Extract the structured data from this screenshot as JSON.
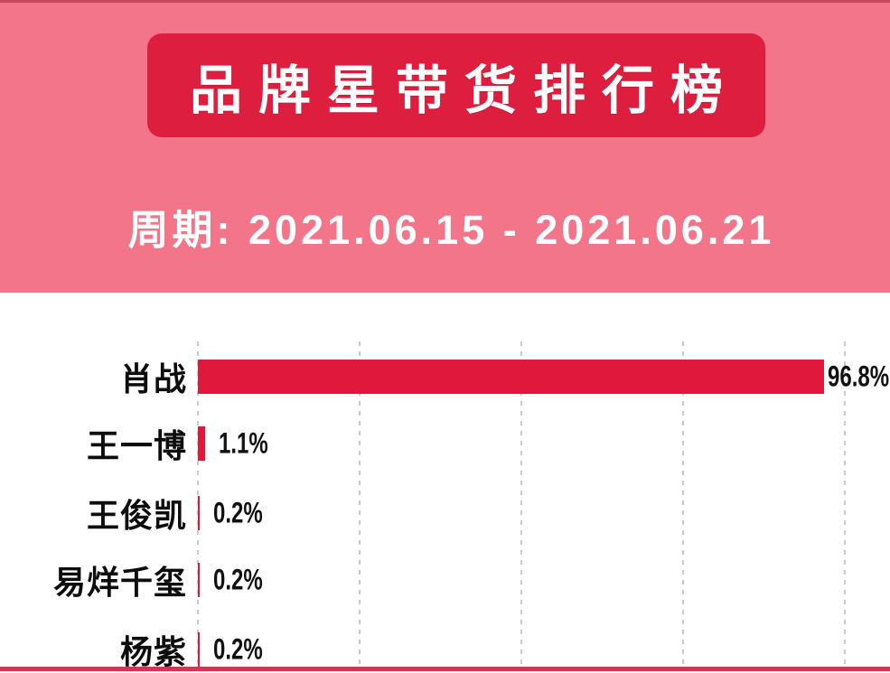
{
  "header": {
    "title": "品牌星带货排行榜",
    "period": "周期: 2021.06.15 - 2021.06.21",
    "colors": {
      "background": "#f3758a",
      "badge": "#dd1e3e",
      "text": "#ffffff"
    }
  },
  "chart_data": {
    "type": "bar",
    "orientation": "horizontal",
    "title": "品牌星带货排行榜",
    "subtitle": "周期: 2021.06.15 - 2021.06.21",
    "categories": [
      "肖战",
      "王一博",
      "王俊凯",
      "易烊千玺",
      "杨紫"
    ],
    "values": [
      96.8,
      1.1,
      0.2,
      0.2,
      0.2
    ],
    "value_labels": [
      "96.8%",
      "1.1%",
      "0.2%",
      "0.2%",
      "0.2%"
    ],
    "unit": "%",
    "xlim": [
      0,
      100
    ],
    "gridlines_pct": [
      0,
      25,
      50,
      75,
      100
    ],
    "grid": "dashed-vertical",
    "legend": false,
    "bar_color": "#e0193c",
    "label_color": "#0d0d0d"
  }
}
